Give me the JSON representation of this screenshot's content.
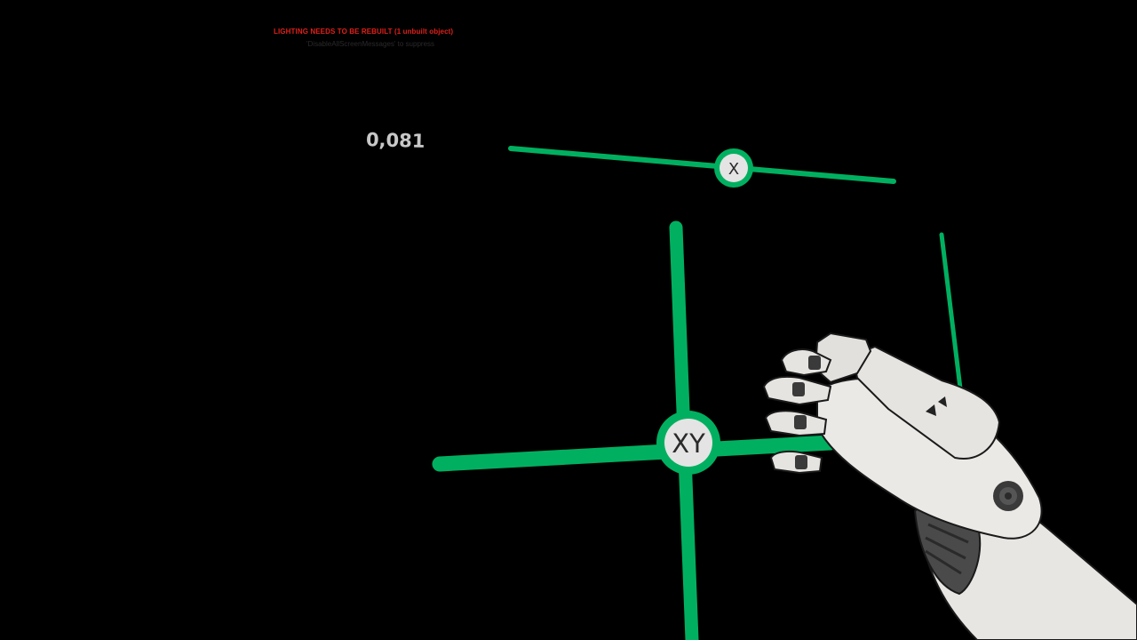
{
  "hud": {
    "lighting_warning": "LIGHTING NEEDS TO BE REBUILT (1 unbuilt object)",
    "warning_hint": "'DisableAllScreenMessages' to suppress",
    "warning_color": "#e0201a"
  },
  "slider_x": {
    "value_readout": "0,081",
    "handle_label": "X"
  },
  "pad_xy": {
    "handle_label": "XY"
  },
  "colors": {
    "gizmo_green": "#00b060",
    "handle_fill": "#e4e4e4",
    "hand_white": "#e8e6e3"
  }
}
